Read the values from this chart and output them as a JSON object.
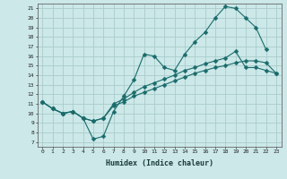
{
  "xlabel": "Humidex (Indice chaleur)",
  "ylabel": "",
  "background_color": "#cce8e8",
  "grid_color": "#aacccc",
  "line_color": "#1a6b6b",
  "xlim": [
    -0.5,
    23.5
  ],
  "ylim": [
    6.5,
    21.5
  ],
  "yticks": [
    7,
    8,
    9,
    10,
    11,
    12,
    13,
    14,
    15,
    16,
    17,
    18,
    19,
    20,
    21
  ],
  "xticks": [
    0,
    1,
    2,
    3,
    4,
    5,
    6,
    7,
    8,
    9,
    10,
    11,
    12,
    13,
    14,
    15,
    16,
    17,
    18,
    19,
    20,
    21,
    22,
    23
  ],
  "line1_x": [
    0,
    1,
    2,
    3,
    4,
    5,
    6,
    7,
    8,
    9,
    10,
    11,
    12,
    13,
    14,
    15,
    16,
    17,
    18,
    19,
    20,
    21,
    22
  ],
  "line1_y": [
    11.2,
    10.5,
    10.0,
    10.2,
    9.5,
    7.3,
    7.6,
    10.2,
    11.8,
    13.5,
    16.2,
    16.0,
    14.8,
    14.5,
    16.2,
    17.5,
    18.5,
    20.0,
    21.2,
    21.0,
    20.0,
    19.0,
    16.7
  ],
  "line2_x": [
    0,
    1,
    2,
    3,
    4,
    5,
    6,
    7,
    8,
    9,
    10,
    11,
    12,
    13,
    14,
    15,
    16,
    17,
    18,
    19,
    20,
    21,
    22,
    23
  ],
  "line2_y": [
    11.2,
    10.5,
    10.0,
    10.2,
    9.5,
    9.2,
    9.5,
    10.8,
    11.2,
    11.8,
    12.2,
    12.6,
    13.0,
    13.4,
    13.8,
    14.2,
    14.5,
    14.8,
    15.0,
    15.3,
    15.5,
    15.5,
    15.3,
    14.2
  ],
  "line3_x": [
    0,
    1,
    2,
    3,
    4,
    5,
    6,
    7,
    8,
    9,
    10,
    11,
    12,
    13,
    14,
    15,
    16,
    17,
    18,
    19,
    20,
    21,
    22,
    23
  ],
  "line3_y": [
    11.2,
    10.5,
    10.0,
    10.2,
    9.5,
    9.2,
    9.5,
    11.0,
    11.5,
    12.2,
    12.8,
    13.2,
    13.6,
    14.0,
    14.5,
    14.8,
    15.2,
    15.5,
    15.8,
    16.5,
    14.8,
    14.8,
    14.5,
    14.2
  ],
  "marker": "D",
  "markersize": 2.5
}
